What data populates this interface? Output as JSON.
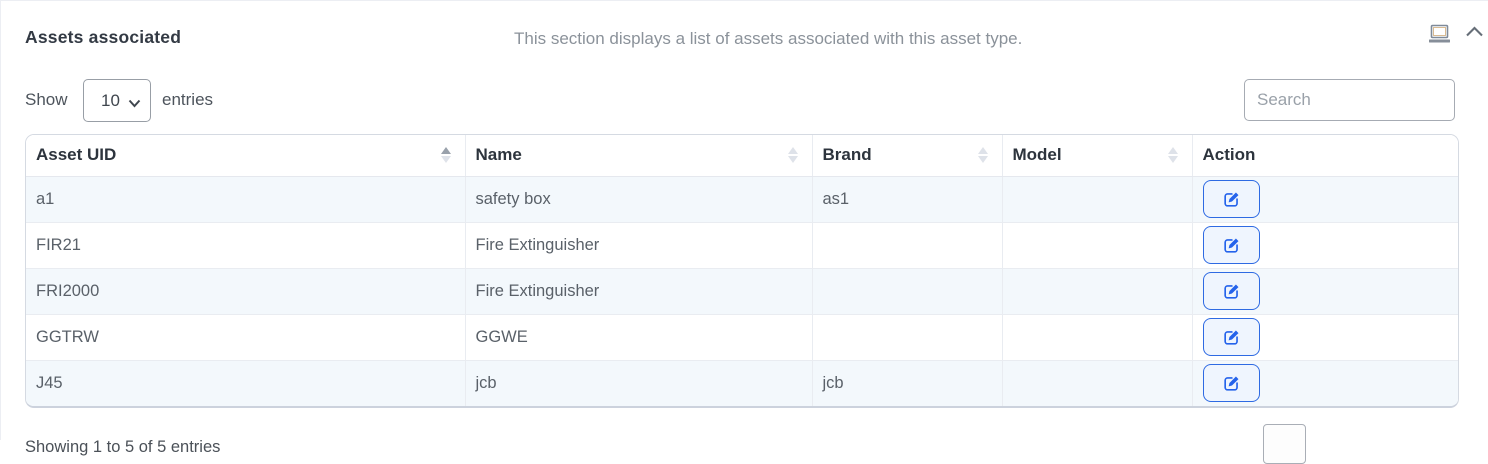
{
  "header": {
    "title": "Assets associated",
    "description": "This section displays a list of assets associated with this asset type.",
    "display_icon": "laptop-icon",
    "collapse_icon": "chevron-up-icon"
  },
  "controls": {
    "show_label": "Show",
    "page_size_selected": "10",
    "entries_label": "entries",
    "search_placeholder": "Search"
  },
  "table": {
    "columns": [
      {
        "label": "Asset UID",
        "sortable": true,
        "sort": "asc"
      },
      {
        "label": "Name",
        "sortable": true,
        "sort": "none"
      },
      {
        "label": "Brand",
        "sortable": true,
        "sort": "none"
      },
      {
        "label": "Model",
        "sortable": true,
        "sort": "none"
      },
      {
        "label": "Action",
        "sortable": false,
        "sort": "none"
      }
    ],
    "rows": [
      {
        "asset_uid": "a1",
        "name": "safety box",
        "brand": "as1",
        "model": ""
      },
      {
        "asset_uid": "FIR21",
        "name": "Fire Extinguisher",
        "brand": "",
        "model": ""
      },
      {
        "asset_uid": "FRI2000",
        "name": "Fire Extinguisher",
        "brand": "",
        "model": ""
      },
      {
        "asset_uid": "GGTRW",
        "name": "GGWE",
        "brand": "",
        "model": ""
      },
      {
        "asset_uid": "J45",
        "name": "jcb",
        "brand": "jcb",
        "model": ""
      }
    ],
    "action_icon": "edit-pencil-square-icon"
  },
  "footer": {
    "info": "Showing 1 to 5 of 5 entries"
  },
  "colors": {
    "accent_blue": "#2563eb",
    "edit_button_border": "#2e6ae3",
    "edit_button_bg": "#eff5fe",
    "row_stripe": "#f3f8fc",
    "table_border": "#d5dae2",
    "muted_text": "#8b929a"
  }
}
